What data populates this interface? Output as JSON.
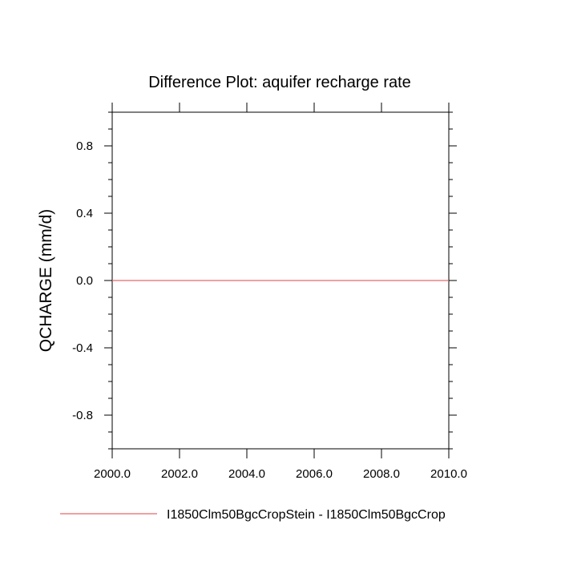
{
  "chart_data": {
    "type": "line",
    "title": "Difference Plot: aquifer recharge rate",
    "xlabel": "",
    "ylabel": "QCHARGE  (mm/d)",
    "xlim": [
      2000,
      2010
    ],
    "ylim": [
      -1.0,
      1.0
    ],
    "x_ticks": [
      2000,
      2002,
      2004,
      2006,
      2008,
      2010
    ],
    "x_tick_labels": [
      "2000.0",
      "2002.0",
      "2004.0",
      "2006.0",
      "2008.0",
      "2010.0"
    ],
    "y_ticks": [
      -0.8,
      -0.4,
      0.0,
      0.4,
      0.8
    ],
    "y_tick_labels": [
      "-0.8",
      "-0.4",
      "0.0",
      "0.4",
      "0.8"
    ],
    "grid": false,
    "legend_position": "bottom",
    "series": [
      {
        "name": "I1850Clm50BgcCropStein - I1850Clm50BgcCrop",
        "color": "#e8696b",
        "x": [
          2000,
          2001,
          2002,
          2003,
          2004,
          2005,
          2006,
          2007,
          2008,
          2009,
          2010
        ],
        "y": [
          0,
          0,
          0,
          0,
          0,
          0,
          0,
          0,
          0,
          0,
          0
        ]
      }
    ]
  }
}
